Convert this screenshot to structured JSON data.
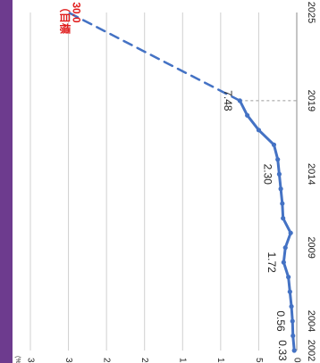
{
  "colors": {
    "accent_bar": "#6d3b8e",
    "line": "#4472c4",
    "target_text": "#e11d1d",
    "grid": "#d0d0d0",
    "axis": "#888888",
    "text": "#222222",
    "refline": "#9a9a9a"
  },
  "chart_data": {
    "type": "line",
    "orientation": "rotated-90-clockwise",
    "value_unit_label": "(%)",
    "value_axis": {
      "ticks": [
        0,
        5,
        10,
        15,
        20,
        25,
        30,
        35
      ],
      "range": [
        0,
        35
      ]
    },
    "year_axis": {
      "tick_labels": [
        "2002",
        "2004",
        "2009",
        "2014",
        "2019",
        "2025"
      ],
      "range": [
        2002,
        2025
      ]
    },
    "grid": true,
    "series": [
      {
        "style": "solid",
        "x": [
          2002,
          2003,
          2004,
          2005,
          2006,
          2007,
          2008,
          2009,
          2010,
          2011,
          2012,
          2013,
          2014,
          2015,
          2016,
          2017,
          2018,
          2019
        ],
        "y": [
          0.33,
          0.5,
          0.56,
          0.7,
          0.9,
          1.1,
          1.72,
          1.5,
          0.8,
          1.8,
          1.9,
          2.1,
          2.3,
          2.5,
          3.0,
          5.0,
          6.5,
          7.48
        ]
      },
      {
        "style": "dashed",
        "x": [
          2019,
          2025
        ],
        "y": [
          7.48,
          30.0
        ]
      }
    ],
    "data_labels": [
      {
        "x": 2002,
        "y": 0.33,
        "text": "0.33"
      },
      {
        "x": 2004,
        "y": 0.56,
        "text": "0.56"
      },
      {
        "x": 2008,
        "y": 1.72,
        "text": "1.72"
      },
      {
        "x": 2014,
        "y": 2.3,
        "text": "2.30"
      },
      {
        "x": 2019,
        "y": 7.48,
        "text": "7.48"
      },
      {
        "x": 2025,
        "y": 30.0,
        "text": "30.0"
      }
    ],
    "target_annotation": {
      "text": "（目標",
      "x": 2025,
      "y": 30.0
    },
    "reference_line": {
      "x": 2019,
      "y": 7.48,
      "style": "dashed"
    }
  }
}
